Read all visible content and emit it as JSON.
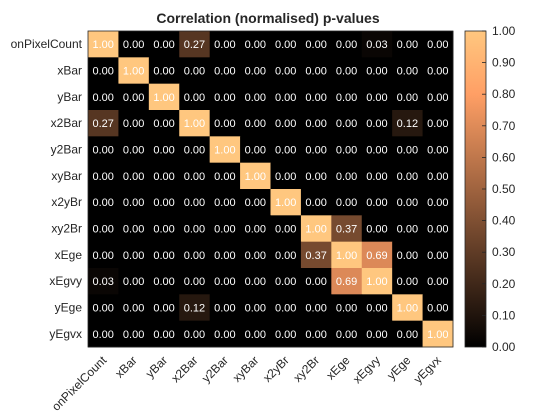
{
  "chart_data": {
    "type": "heatmap",
    "title": "Correlation (normalised) p-values",
    "xlabel": "",
    "ylabel": "",
    "rows": [
      "onPixelCount",
      "xBar",
      "yBar",
      "x2Bar",
      "y2Bar",
      "xyBar",
      "x2yBr",
      "xy2Br",
      "xEge",
      "xEgvy",
      "yEge",
      "yEgvx"
    ],
    "columns": [
      "onPixelCount",
      "xBar",
      "yBar",
      "x2Bar",
      "y2Bar",
      "xyBar",
      "x2yBr",
      "xy2Br",
      "xEge",
      "xEgvy",
      "yEge",
      "yEgvx"
    ],
    "values": [
      [
        1.0,
        0.0,
        0.0,
        0.27,
        0.0,
        0.0,
        0.0,
        0.0,
        0.0,
        0.03,
        0.0,
        0.0
      ],
      [
        0.0,
        1.0,
        0.0,
        0.0,
        0.0,
        0.0,
        0.0,
        0.0,
        0.0,
        0.0,
        0.0,
        0.0
      ],
      [
        0.0,
        0.0,
        1.0,
        0.0,
        0.0,
        0.0,
        0.0,
        0.0,
        0.0,
        0.0,
        0.0,
        0.0
      ],
      [
        0.27,
        0.0,
        0.0,
        1.0,
        0.0,
        0.0,
        0.0,
        0.0,
        0.0,
        0.0,
        0.12,
        0.0
      ],
      [
        0.0,
        0.0,
        0.0,
        0.0,
        1.0,
        0.0,
        0.0,
        0.0,
        0.0,
        0.0,
        0.0,
        0.0
      ],
      [
        0.0,
        0.0,
        0.0,
        0.0,
        0.0,
        1.0,
        0.0,
        0.0,
        0.0,
        0.0,
        0.0,
        0.0
      ],
      [
        0.0,
        0.0,
        0.0,
        0.0,
        0.0,
        0.0,
        1.0,
        0.0,
        0.0,
        0.0,
        0.0,
        0.0
      ],
      [
        0.0,
        0.0,
        0.0,
        0.0,
        0.0,
        0.0,
        0.0,
        1.0,
        0.37,
        0.0,
        0.0,
        0.0
      ],
      [
        0.0,
        0.0,
        0.0,
        0.0,
        0.0,
        0.0,
        0.0,
        0.37,
        1.0,
        0.69,
        0.0,
        0.0
      ],
      [
        0.03,
        0.0,
        0.0,
        0.0,
        0.0,
        0.0,
        0.0,
        0.0,
        0.69,
        1.0,
        0.0,
        0.0
      ],
      [
        0.0,
        0.0,
        0.0,
        0.12,
        0.0,
        0.0,
        0.0,
        0.0,
        0.0,
        0.0,
        1.0,
        0.0
      ],
      [
        0.0,
        0.0,
        0.0,
        0.0,
        0.0,
        0.0,
        0.0,
        0.0,
        0.0,
        0.0,
        0.0,
        1.0
      ]
    ],
    "value_format": "0.00",
    "colormap": "copper",
    "clim": [
      0,
      1
    ],
    "colorbar": {
      "ticks": [
        0.0,
        0.1,
        0.2,
        0.3,
        0.4,
        0.5,
        0.6,
        0.7,
        0.8,
        0.9,
        1.0
      ],
      "tick_labels": [
        "0.00",
        "0.10",
        "0.20",
        "0.30",
        "0.40",
        "0.50",
        "0.60",
        "0.70",
        "0.80",
        "0.90",
        "1.00"
      ],
      "placement": "right"
    },
    "grid": false,
    "colors": {
      "low": "#000000",
      "high": "#ffc77f",
      "cell_text": "#ffffff",
      "axis": "#262626"
    }
  }
}
